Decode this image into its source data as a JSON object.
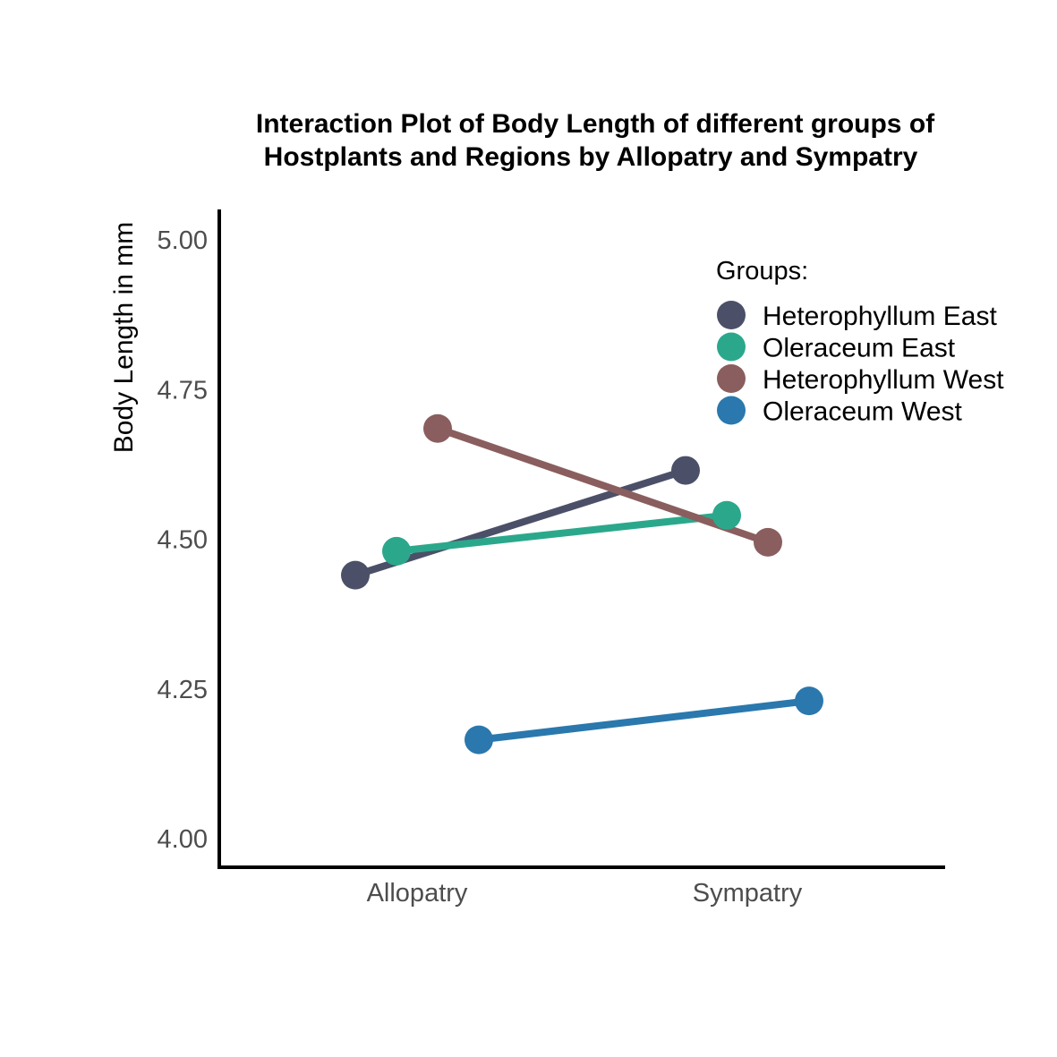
{
  "chart_data": {
    "type": "line",
    "title_lines": [
      "Interaction Plot of Body Length of different groups of",
      "Hostplants and Regions by Allopatry and Sympatry"
    ],
    "xlabel": "",
    "ylabel": "Body Length in mm",
    "categories": [
      "Allopatry",
      "Sympatry"
    ],
    "ylim": [
      3.95,
      5.05
    ],
    "yticks": [
      4.0,
      4.25,
      4.5,
      4.75,
      5.0
    ],
    "ytick_labels": [
      "4.00",
      "4.25",
      "4.50",
      "4.75",
      "5.00"
    ],
    "grid": false,
    "legend": {
      "title": "Groups:",
      "position": "top-right"
    },
    "series": [
      {
        "name": "Heterophyllum East",
        "color": "#4b5068",
        "values": [
          4.44,
          4.615
        ]
      },
      {
        "name": "Oleraceum East",
        "color": "#2ba88c",
        "values": [
          4.48,
          4.54
        ]
      },
      {
        "name": "Heterophyllum West",
        "color": "#8a5e5e",
        "values": [
          4.685,
          4.495
        ]
      },
      {
        "name": "Oleraceum West",
        "color": "#2a78ad",
        "values": [
          4.165,
          4.23
        ]
      }
    ]
  }
}
